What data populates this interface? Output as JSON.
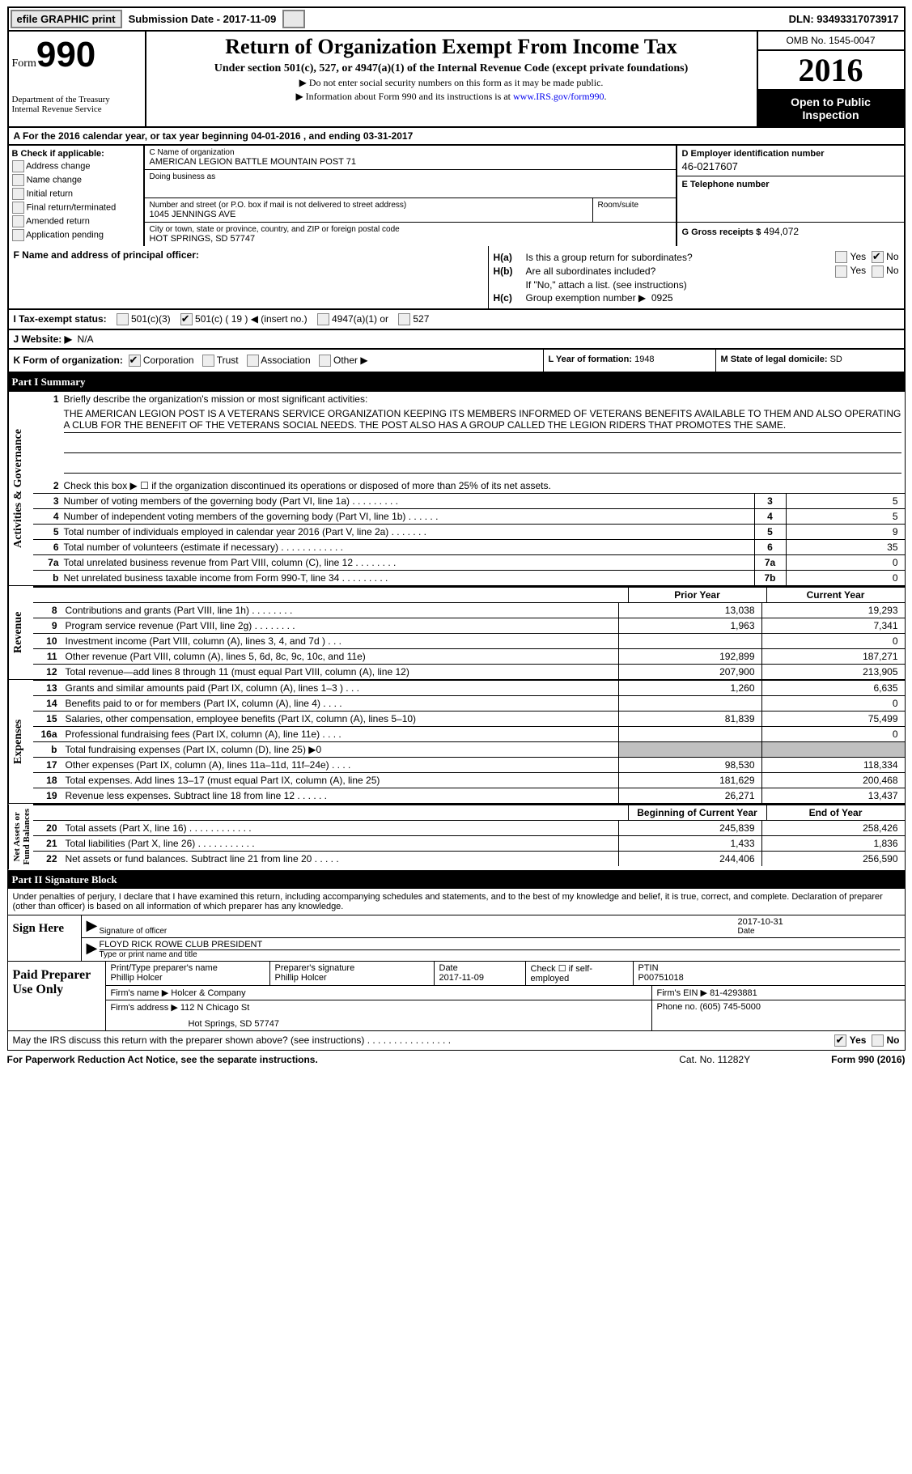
{
  "topbar": {
    "efile": "efile GRAPHIC print",
    "submission": "Submission Date - 2017-11-09",
    "dln": "DLN: 93493317073917"
  },
  "header": {
    "form_label": "Form",
    "form_num": "990",
    "dept": "Department of the Treasury",
    "irs": "Internal Revenue Service",
    "title": "Return of Organization Exempt From Income Tax",
    "subtitle": "Under section 501(c), 527, or 4947(a)(1) of the Internal Revenue Code (except private foundations)",
    "note1": "▶ Do not enter social security numbers on this form as it may be made public.",
    "note2": "▶ Information about Form 990 and its instructions is at ",
    "note2_link": "www.IRS.gov/form990",
    "note2_end": ".",
    "omb": "OMB No. 1545-0047",
    "year": "2016",
    "open": "Open to Public Inspection"
  },
  "A": {
    "text": "A  For the 2016 calendar year, or tax year beginning 04-01-2016   , and ending 03-31-2017"
  },
  "B": {
    "hdr": "B Check if applicable:",
    "items": [
      "Address change",
      "Name change",
      "Initial return",
      "Final return/terminated",
      "Amended return",
      "Application pending"
    ]
  },
  "C": {
    "name_lbl": "C Name of organization",
    "name": "AMERICAN LEGION BATTLE MOUNTAIN POST 71",
    "dba_lbl": "Doing business as",
    "dba": "",
    "street_lbl": "Number and street (or P.O. box if mail is not delivered to street address)",
    "street": "1045 JENNINGS AVE",
    "room_lbl": "Room/suite",
    "city_lbl": "City or town, state or province, country, and ZIP or foreign postal code",
    "city": "HOT SPRINGS, SD  57747"
  },
  "D": {
    "lbl": "D Employer identification number",
    "val": "46-0217607"
  },
  "E": {
    "lbl": "E Telephone number",
    "val": ""
  },
  "G": {
    "lbl": "G Gross receipts $",
    "val": "494,072"
  },
  "F": {
    "lbl": "F  Name and address of principal officer:"
  },
  "H": {
    "a": "Is this a group return for subordinates?",
    "a_yes": false,
    "a_no": true,
    "b": "Are all subordinates included?",
    "b_yes": false,
    "b_no": false,
    "b_note": "If \"No,\" attach a list. (see instructions)",
    "c": "Group exemption number ▶",
    "c_val": "0925"
  },
  "I": {
    "lbl": "I  Tax-exempt status:",
    "c3": "501(c)(3)",
    "c": "501(c) ( 19 ) ◀ (insert no.)",
    "c_checked": true,
    "a4947": "4947(a)(1) or",
    "s527": "527"
  },
  "J": {
    "lbl": "J  Website: ▶",
    "val": "N/A"
  },
  "K": {
    "lbl": "K Form of organization:",
    "corp": "Corporation",
    "corp_checked": true,
    "trust": "Trust",
    "assoc": "Association",
    "other": "Other ▶"
  },
  "L": {
    "lbl": "L Year of formation:",
    "val": "1948"
  },
  "M": {
    "lbl": "M State of legal domicile:",
    "val": "SD"
  },
  "partI": {
    "bar": "Part I    Summary"
  },
  "gov": {
    "l1": "Briefly describe the organization's mission or most significant activities:",
    "mission": "THE AMERICAN LEGION POST IS A VETERANS SERVICE ORGANIZATION KEEPING ITS MEMBERS INFORMED OF VETERANS BENEFITS AVAILABLE TO THEM AND ALSO OPERATING A CLUB FOR THE BENEFIT OF THE VETERANS SOCIAL NEEDS. THE POST ALSO HAS A GROUP CALLED THE LEGION RIDERS THAT PROMOTES THE SAME.",
    "l2": "Check this box ▶ ☐  if the organization discontinued its operations or disposed of more than 25% of its net assets.",
    "rows": [
      {
        "n": "3",
        "t": "Number of voting members of the governing body (Part VI, line 1a)   .    .    .    .    .    .    .    .    .",
        "c": "3",
        "v": "5"
      },
      {
        "n": "4",
        "t": "Number of independent voting members of the governing body (Part VI, line 1b)   .    .    .    .    .    .",
        "c": "4",
        "v": "5"
      },
      {
        "n": "5",
        "t": "Total number of individuals employed in calendar year 2016 (Part V, line 2a)   .    .    .    .    .    .    .",
        "c": "5",
        "v": "9"
      },
      {
        "n": "6",
        "t": "Total number of volunteers (estimate if necessary)   .    .    .    .    .    .    .    .    .    .    .    .",
        "c": "6",
        "v": "35"
      },
      {
        "n": "7a",
        "t": "Total unrelated business revenue from Part VIII, column (C), line 12   .    .    .    .    .    .    .    .",
        "c": "7a",
        "v": "0"
      },
      {
        "n": "b",
        "t": "Net unrelated business taxable income from Form 990-T, line 34   .    .    .    .    .    .    .    .    .",
        "c": "7b",
        "v": "0"
      }
    ]
  },
  "rev": {
    "h1": "Prior Year",
    "h2": "Current Year",
    "rows": [
      {
        "n": "8",
        "t": "Contributions and grants (Part VIII, line 1h)   .    .    .    .    .    .    .    .",
        "c1": "13,038",
        "c2": "19,293"
      },
      {
        "n": "9",
        "t": "Program service revenue (Part VIII, line 2g)   .    .    .    .    .    .    .    .",
        "c1": "1,963",
        "c2": "7,341"
      },
      {
        "n": "10",
        "t": "Investment income (Part VIII, column (A), lines 3, 4, and 7d )   .    .    .",
        "c1": "",
        "c2": "0"
      },
      {
        "n": "11",
        "t": "Other revenue (Part VIII, column (A), lines 5, 6d, 8c, 9c, 10c, and 11e)",
        "c1": "192,899",
        "c2": "187,271"
      },
      {
        "n": "12",
        "t": "Total revenue—add lines 8 through 11 (must equal Part VIII, column (A), line 12)",
        "c1": "207,900",
        "c2": "213,905"
      }
    ]
  },
  "exp": {
    "rows": [
      {
        "n": "13",
        "t": "Grants and similar amounts paid (Part IX, column (A), lines 1–3 )   .    .    .",
        "c1": "1,260",
        "c2": "6,635"
      },
      {
        "n": "14",
        "t": "Benefits paid to or for members (Part IX, column (A), line 4)   .    .    .    .",
        "c1": "",
        "c2": "0"
      },
      {
        "n": "15",
        "t": "Salaries, other compensation, employee benefits (Part IX, column (A), lines 5–10)",
        "c1": "81,839",
        "c2": "75,499"
      },
      {
        "n": "16a",
        "t": "Professional fundraising fees (Part IX, column (A), line 11e)   .    .    .    .",
        "c1": "",
        "c2": "0"
      },
      {
        "n": "b",
        "t": "Total fundraising expenses (Part IX, column (D), line 25) ▶0",
        "c1": "GRAY",
        "c2": "GRAY"
      },
      {
        "n": "17",
        "t": "Other expenses (Part IX, column (A), lines 11a–11d, 11f–24e)   .    .    .    .",
        "c1": "98,530",
        "c2": "118,334"
      },
      {
        "n": "18",
        "t": "Total expenses. Add lines 13–17 (must equal Part IX, column (A), line 25)",
        "c1": "181,629",
        "c2": "200,468"
      },
      {
        "n": "19",
        "t": "Revenue less expenses. Subtract line 18 from line 12   .    .    .    .    .    .",
        "c1": "26,271",
        "c2": "13,437"
      }
    ]
  },
  "net": {
    "h1": "Beginning of Current Year",
    "h2": "End of Year",
    "rows": [
      {
        "n": "20",
        "t": "Total assets (Part X, line 16)   .    .    .    .    .    .    .    .    .    .    .    .",
        "c1": "245,839",
        "c2": "258,426"
      },
      {
        "n": "21",
        "t": "Total liabilities (Part X, line 26)   .    .    .    .    .    .    .    .    .    .    .",
        "c1": "1,433",
        "c2": "1,836"
      },
      {
        "n": "22",
        "t": "Net assets or fund balances. Subtract line 21 from line 20   .    .    .    .    .",
        "c1": "244,406",
        "c2": "256,590"
      }
    ]
  },
  "partII": {
    "bar": "Part II    Signature Block"
  },
  "sig": {
    "perjury": "Under penalties of perjury, I declare that I have examined this return, including accompanying schedules and statements, and to the best of my knowledge and belief, it is true, correct, and complete. Declaration of preparer (other than officer) is based on all information of which preparer has any knowledge.",
    "sign_here": "Sign Here",
    "sig_of_officer": "Signature of officer",
    "sig_date": "2017-10-31",
    "date_lbl": "Date",
    "name_title": "FLOYD RICK ROWE CLUB PRESIDENT",
    "name_title_lbl": "Type or print name and title",
    "paid": "Paid Preparer Use Only",
    "prep_name_lbl": "Print/Type preparer's name",
    "prep_name": "Phillip Holcer",
    "prep_sig_lbl": "Preparer's signature",
    "prep_sig": "Phillip Holcer",
    "prep_date_lbl": "Date",
    "prep_date": "2017-11-09",
    "check_lbl": "Check ☐ if self-employed",
    "ptin_lbl": "PTIN",
    "ptin": "P00751018",
    "firm_name_lbl": "Firm's name    ▶",
    "firm_name": "Holcer & Company",
    "firm_ein_lbl": "Firm's EIN ▶",
    "firm_ein": "81-4293881",
    "firm_addr_lbl": "Firm's address ▶",
    "firm_addr1": "112 N Chicago St",
    "firm_addr2": "Hot Springs, SD  57747",
    "phone_lbl": "Phone no.",
    "phone": "(605) 745-5000"
  },
  "discuss": {
    "t": "May the IRS discuss this return with the preparer shown above? (see instructions)   .    .    .    .    .    .    .    .    .    .    .    .    .    .    .    .",
    "yes": "Yes",
    "no": "No",
    "yes_checked": true
  },
  "footer": {
    "l": "For Paperwork Reduction Act Notice, see the separate instructions.",
    "m": "Cat. No. 11282Y",
    "r": "Form 990 (2016)"
  }
}
